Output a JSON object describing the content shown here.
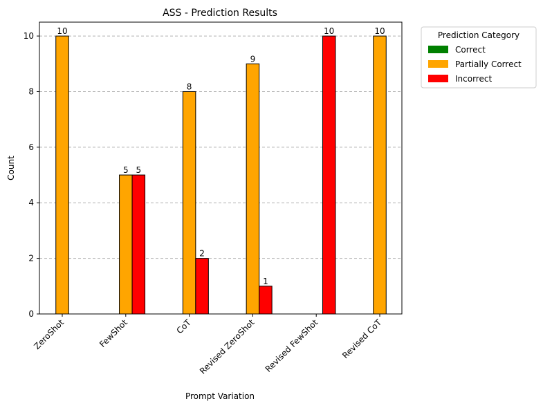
{
  "chart_data": {
    "type": "bar",
    "title": "ASS - Prediction Results",
    "xlabel": "Prompt Variation",
    "ylabel": "Count",
    "categories": [
      "ZeroShot",
      "FewShot",
      "CoT",
      "Revised ZeroShot",
      "Revised FewShot",
      "Revised CoT"
    ],
    "series": [
      {
        "name": "Correct",
        "color": "#008000",
        "values": [
          0,
          0,
          0,
          0,
          0,
          0
        ]
      },
      {
        "name": "Partially Correct",
        "color": "#FFA500",
        "values": [
          10,
          5,
          8,
          9,
          0,
          10
        ]
      },
      {
        "name": "Incorrect",
        "color": "#FF0000",
        "values": [
          0,
          5,
          2,
          1,
          10,
          0
        ]
      }
    ],
    "ylim": [
      0,
      10.5
    ],
    "yticks": [
      0,
      2,
      4,
      6,
      8,
      10
    ],
    "grid": "y-dashed",
    "legend": {
      "title": "Prediction Category",
      "placement": "outside-top-right"
    }
  }
}
